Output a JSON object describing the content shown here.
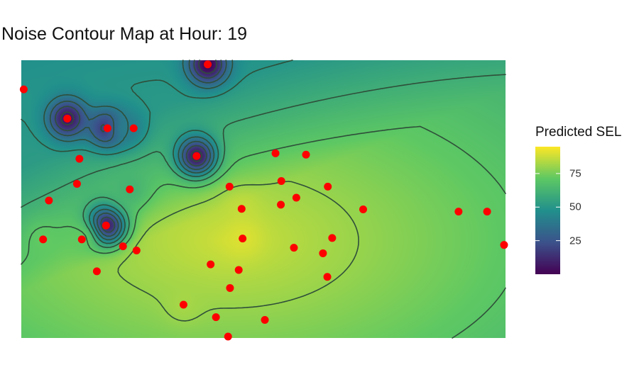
{
  "chart_data": {
    "type": "heatmap",
    "title": "Noise Contour Map at Hour: 19",
    "xlabel": "",
    "ylabel": "",
    "legend": {
      "title": "Predicted SEL",
      "position": "right",
      "ticks": [
        75,
        50,
        25
      ],
      "range": [
        0,
        95
      ],
      "palette": [
        "#440154",
        "#3b528b",
        "#21908c",
        "#5dc863",
        "#fde725"
      ]
    },
    "contour_levels": [
      10,
      20,
      30,
      40,
      50,
      60,
      70,
      80
    ],
    "grid": false,
    "colors": {
      "point": "#ff0000",
      "contour": "#2f4f3a"
    },
    "sources": [
      {
        "x": 0.385,
        "y": 0.985,
        "value": 0
      },
      {
        "x": 0.095,
        "y": 0.79,
        "value": 5
      },
      {
        "x": 0.178,
        "y": 0.755,
        "value": 12
      },
      {
        "x": 0.22,
        "y": 0.755,
        "value": 40
      },
      {
        "x": 0.362,
        "y": 0.655,
        "value": 5
      },
      {
        "x": 0.175,
        "y": 0.405,
        "value": 5
      },
      {
        "x": 0.224,
        "y": 0.535,
        "value": 62
      },
      {
        "x": 0.12,
        "y": 0.355,
        "value": 72
      },
      {
        "x": 0.045,
        "y": 0.355,
        "value": 72
      },
      {
        "x": 0.455,
        "y": 0.465,
        "value": 86
      },
      {
        "x": 0.457,
        "y": 0.358,
        "value": 90
      },
      {
        "x": 0.335,
        "y": 0.12,
        "value": 82
      }
    ],
    "points": [
      {
        "x": 0.385,
        "y": 0.985
      },
      {
        "x": 0.005,
        "y": 0.895
      },
      {
        "x": 0.095,
        "y": 0.79
      },
      {
        "x": 0.178,
        "y": 0.755
      },
      {
        "x": 0.232,
        "y": 0.755
      },
      {
        "x": 0.362,
        "y": 0.655
      },
      {
        "x": 0.12,
        "y": 0.645
      },
      {
        "x": 0.525,
        "y": 0.665
      },
      {
        "x": 0.588,
        "y": 0.66
      },
      {
        "x": 0.537,
        "y": 0.565
      },
      {
        "x": 0.115,
        "y": 0.555
      },
      {
        "x": 0.43,
        "y": 0.545
      },
      {
        "x": 0.633,
        "y": 0.545
      },
      {
        "x": 0.224,
        "y": 0.535
      },
      {
        "x": 0.057,
        "y": 0.495
      },
      {
        "x": 0.568,
        "y": 0.505
      },
      {
        "x": 0.536,
        "y": 0.48
      },
      {
        "x": 0.455,
        "y": 0.465
      },
      {
        "x": 0.706,
        "y": 0.463
      },
      {
        "x": 0.903,
        "y": 0.455
      },
      {
        "x": 0.962,
        "y": 0.455
      },
      {
        "x": 0.175,
        "y": 0.405
      },
      {
        "x": 0.045,
        "y": 0.355
      },
      {
        "x": 0.125,
        "y": 0.355
      },
      {
        "x": 0.457,
        "y": 0.358
      },
      {
        "x": 0.642,
        "y": 0.36
      },
      {
        "x": 0.21,
        "y": 0.33
      },
      {
        "x": 0.238,
        "y": 0.315
      },
      {
        "x": 0.563,
        "y": 0.325
      },
      {
        "x": 0.623,
        "y": 0.305
      },
      {
        "x": 0.997,
        "y": 0.335
      },
      {
        "x": 0.391,
        "y": 0.265
      },
      {
        "x": 0.449,
        "y": 0.245
      },
      {
        "x": 0.156,
        "y": 0.24
      },
      {
        "x": 0.632,
        "y": 0.22
      },
      {
        "x": 0.431,
        "y": 0.18
      },
      {
        "x": 0.335,
        "y": 0.12
      },
      {
        "x": 0.402,
        "y": 0.075
      },
      {
        "x": 0.503,
        "y": 0.065
      },
      {
        "x": 0.427,
        "y": 0.005
      }
    ]
  }
}
